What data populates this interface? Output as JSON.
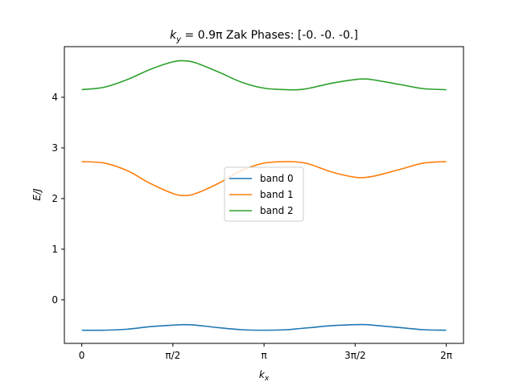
{
  "chart_data": {
    "type": "line",
    "title_prefix": "k",
    "title_prefix_sub": "y",
    "title_eq": " = 0.9π Zak Phases: [-0. -0. -0.]",
    "xlabel": "k",
    "xlabel_sub": "x",
    "ylabel": "E/J",
    "xlim": [
      -0.3,
      6.58
    ],
    "ylim": [
      -0.86,
      5.0
    ],
    "xticks": [
      {
        "value": 0,
        "label": "0"
      },
      {
        "value": 1.5708,
        "label": "π/2"
      },
      {
        "value": 3.1416,
        "label": "π"
      },
      {
        "value": 4.7124,
        "label": "3π/2"
      },
      {
        "value": 6.2832,
        "label": "2π"
      }
    ],
    "yticks": [
      {
        "value": 0,
        "label": "0"
      },
      {
        "value": 1,
        "label": "1"
      },
      {
        "value": 2,
        "label": "2"
      },
      {
        "value": 3,
        "label": "3"
      },
      {
        "value": 4,
        "label": "4"
      }
    ],
    "legend_placement": "center",
    "grid": false,
    "x": [
      0.0,
      0.3927,
      0.7854,
      1.1781,
      1.5708,
      1.7671,
      1.9635,
      2.3562,
      2.7489,
      3.1416,
      3.5343,
      3.7306,
      3.927,
      4.3197,
      4.7124,
      4.9087,
      5.1051,
      5.4978,
      5.8905,
      6.2832
    ],
    "series": [
      {
        "name": "band 0",
        "color": "#1f77b4",
        "values": [
          -0.6,
          -0.6,
          -0.58,
          -0.53,
          -0.5,
          -0.49,
          -0.5,
          -0.55,
          -0.59,
          -0.6,
          -0.59,
          -0.57,
          -0.55,
          -0.51,
          -0.49,
          -0.49,
          -0.51,
          -0.55,
          -0.59,
          -0.6
        ]
      },
      {
        "name": "band 1",
        "color": "#ff7f0e",
        "values": [
          2.73,
          2.7,
          2.55,
          2.3,
          2.1,
          2.06,
          2.1,
          2.3,
          2.55,
          2.7,
          2.73,
          2.72,
          2.68,
          2.52,
          2.42,
          2.42,
          2.46,
          2.58,
          2.7,
          2.73
        ]
      },
      {
        "name": "band 2",
        "color": "#2ca02c",
        "values": [
          4.15,
          4.2,
          4.35,
          4.55,
          4.7,
          4.72,
          4.68,
          4.5,
          4.3,
          4.18,
          4.15,
          4.15,
          4.18,
          4.28,
          4.35,
          4.36,
          4.33,
          4.25,
          4.17,
          4.15
        ]
      }
    ]
  }
}
